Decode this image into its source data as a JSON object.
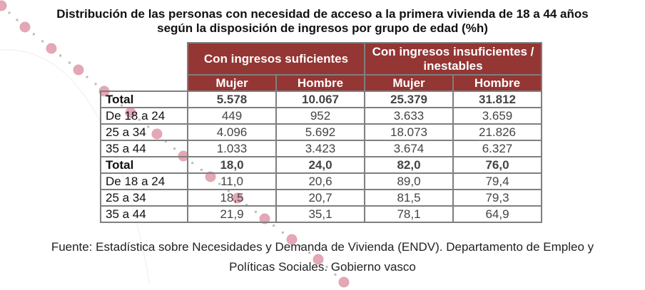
{
  "title_line1": "Distribución de las personas con necesidad de acceso a la primera vivienda de 18 a 44 años",
  "title_line2": "según la disposición de ingresos por grupo de edad (%h)",
  "header_color": "#943634",
  "groups": [
    "Con ingresos suficientes",
    "Con ingresos insuficientes / inestables"
  ],
  "subheaders": [
    "Mujer",
    "Hombre",
    "Mujer",
    "Hombre"
  ],
  "rows": [
    {
      "label": "Total",
      "values": [
        "5.578",
        "10.067",
        "25.379",
        "31.812"
      ],
      "bold": true
    },
    {
      "label": "De 18 a 24",
      "values": [
        "449",
        "952",
        "3.633",
        "3.659"
      ]
    },
    {
      "label": "25 a 34",
      "values": [
        "4.096",
        "5.692",
        "18.073",
        "21.826"
      ]
    },
    {
      "label": "35 a 44",
      "values": [
        "1.033",
        "3.423",
        "3.674",
        "6.327"
      ]
    },
    {
      "label": "Total",
      "values": [
        "18,0",
        "24,0",
        "82,0",
        "76,0"
      ],
      "bold": true
    },
    {
      "label": "De 18 a 24",
      "values": [
        "11,0",
        "20,6",
        "89,0",
        "79,4"
      ]
    },
    {
      "label": "25 a 34",
      "values": [
        "18,5",
        "20,7",
        "81,5",
        "79,3"
      ]
    },
    {
      "label": "35 a 44",
      "values": [
        "21,9",
        "35,1",
        "78,1",
        "64,9"
      ]
    }
  ],
  "source_line1": "Fuente: Estadística sobre Necesidades y Demanda de Vivienda (ENDV). Departamento de Empleo y",
  "source_line2": "Políticas Sociales. Gobierno vasco"
}
